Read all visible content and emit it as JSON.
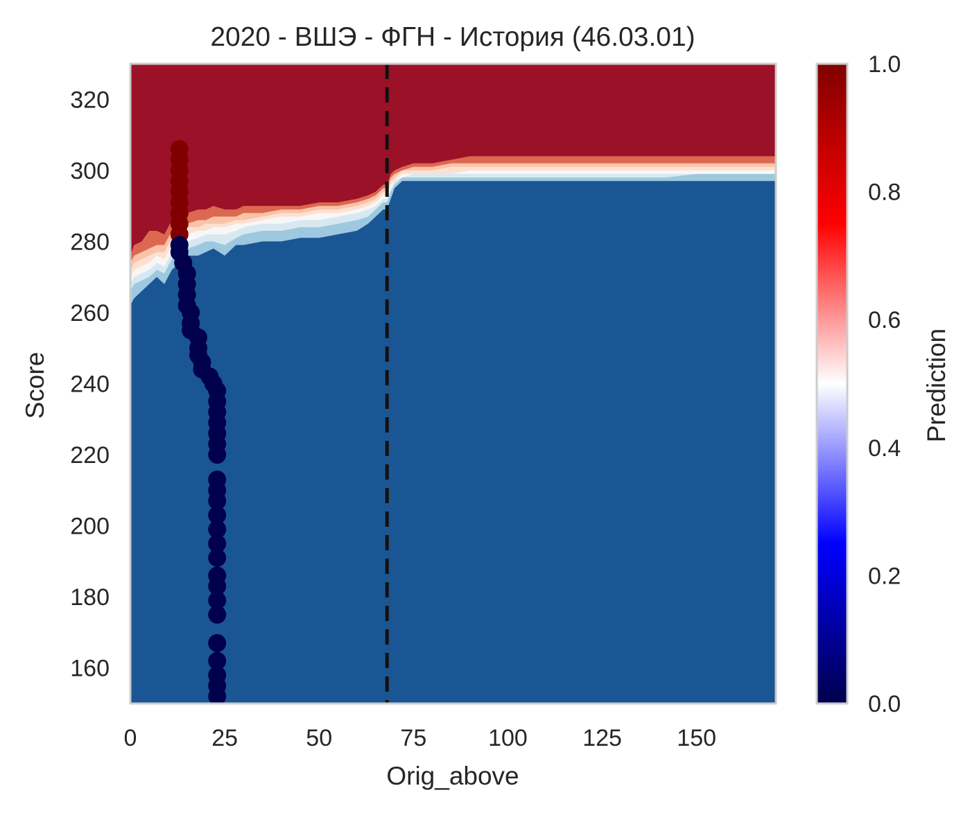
{
  "chart_data": {
    "type": "contour",
    "title": "2020 - ВШЭ - ФГН - История (46.03.01)",
    "xlabel": "Orig_above",
    "ylabel": "Score",
    "xlim": [
      0,
      171
    ],
    "ylim": [
      150,
      330
    ],
    "xticks": [
      0,
      25,
      50,
      75,
      100,
      125,
      150
    ],
    "yticks": [
      160,
      180,
      200,
      220,
      240,
      260,
      280,
      300,
      320
    ],
    "grid": false,
    "vline": {
      "x": 68,
      "style": "dashed",
      "color": "#111111"
    },
    "colorbar": {
      "label": "Prediction",
      "range": [
        0,
        1
      ],
      "ticks": [
        0.0,
        0.2,
        0.4,
        0.6,
        0.8,
        1.0
      ],
      "tick_labels": [
        "0.0",
        "0.2",
        "0.4",
        "0.6",
        "0.8",
        "1.0"
      ],
      "cmap": "seismic"
    },
    "contour_colors": [
      "#1b5694",
      "#4b94c4",
      "#9dc8e0",
      "#d8e8f1",
      "#f7f7f7",
      "#fde0d0",
      "#f9c3a9",
      "#dc6852",
      "#9b1127"
    ],
    "contour_boundaries": {
      "x": [
        0,
        1,
        3,
        5,
        7,
        9,
        11,
        13,
        15,
        18,
        20,
        22,
        25,
        28,
        30,
        35,
        40,
        45,
        50,
        55,
        60,
        63,
        65,
        67,
        68,
        69,
        70,
        72,
        75,
        80,
        85,
        90,
        95,
        100,
        101,
        110,
        120,
        130,
        140,
        142,
        150,
        160,
        171
      ],
      "levels": [
        [
          262,
          264,
          266,
          268,
          270,
          268,
          272,
          274,
          276,
          276,
          277,
          278,
          276,
          279,
          279,
          280,
          280,
          281,
          281,
          282,
          283,
          285,
          287,
          289,
          289,
          292,
          295,
          297,
          297,
          297,
          297,
          297,
          297,
          297,
          297,
          297,
          297,
          297,
          297,
          297,
          297,
          297,
          297
        ],
        [
          266,
          268,
          269,
          270,
          272,
          271,
          275,
          277,
          278,
          279,
          280,
          280,
          279,
          281,
          282,
          283,
          283,
          284,
          284,
          285,
          286,
          287,
          289,
          291,
          291,
          294,
          296,
          298,
          298,
          298,
          298,
          298,
          298,
          298,
          298,
          298,
          298,
          298,
          298,
          298,
          299,
          299,
          299
        ],
        [
          268,
          270,
          271,
          272,
          274,
          273,
          277,
          279,
          280,
          281,
          282,
          282,
          282,
          283,
          284,
          285,
          285,
          286,
          286,
          287,
          288,
          289,
          290,
          292,
          292,
          295,
          297,
          298,
          299,
          299,
          299,
          299,
          299,
          299,
          299,
          299,
          299,
          299,
          299,
          299,
          299,
          299,
          299
        ],
        [
          270,
          272,
          273,
          274,
          276,
          275,
          279,
          281,
          282,
          283,
          283,
          284,
          284,
          285,
          285,
          286,
          287,
          287,
          288,
          288,
          289,
          290,
          291,
          293,
          293,
          296,
          297,
          299,
          299,
          299,
          299,
          300,
          300,
          300,
          300,
          300,
          300,
          300,
          300,
          300,
          300,
          300,
          300
        ],
        [
          272,
          274,
          275,
          276,
          277,
          277,
          281,
          283,
          284,
          284,
          285,
          285,
          285,
          286,
          286,
          287,
          288,
          288,
          289,
          289,
          290,
          291,
          292,
          294,
          294,
          297,
          298,
          300,
          300,
          300,
          301,
          301,
          301,
          301,
          301,
          301,
          301,
          301,
          301,
          301,
          301,
          301,
          301
        ],
        [
          274,
          276,
          277,
          278,
          279,
          279,
          283,
          285,
          285,
          286,
          286,
          287,
          287,
          287,
          288,
          288,
          289,
          289,
          290,
          290,
          291,
          292,
          293,
          295,
          295,
          298,
          299,
          300,
          301,
          301,
          302,
          302,
          302,
          302,
          302,
          302,
          302,
          302,
          302,
          302,
          302,
          302,
          302
        ],
        [
          276,
          279,
          280,
          283,
          283,
          282,
          286,
          288,
          288,
          289,
          289,
          290,
          289,
          289,
          290,
          290,
          290,
          290,
          291,
          291,
          292,
          293,
          294,
          296,
          296,
          299,
          300,
          301,
          302,
          302,
          303,
          304,
          304,
          304,
          304,
          304,
          304,
          304,
          304,
          304,
          304,
          304,
          304
        ],
        [
          290,
          290,
          292,
          294,
          294,
          290,
          290,
          290,
          290,
          291,
          292,
          292,
          292,
          292,
          293,
          293,
          293,
          292,
          292,
          293,
          294,
          295,
          296,
          298,
          298,
          302,
          330,
          330,
          330,
          330,
          330,
          330,
          330,
          330,
          330,
          330,
          330,
          330,
          330,
          330,
          330,
          330,
          330
        ]
      ],
      "top_band": [
        {
          "x_from": 0,
          "x_to": 72,
          "color": "#9b1127"
        },
        {
          "x_from": 72,
          "x_to": 101,
          "color": "#dc6852"
        },
        {
          "x_from": 101,
          "x_to": 171,
          "color": "#f9c3a9"
        }
      ]
    },
    "series": [
      {
        "points": [
          {
            "x": 13,
            "y": 306,
            "v": 1
          },
          {
            "x": 13,
            "y": 303,
            "v": 1
          },
          {
            "x": 13,
            "y": 300,
            "v": 1
          },
          {
            "x": 13,
            "y": 297,
            "v": 1
          },
          {
            "x": 13,
            "y": 294,
            "v": 1
          },
          {
            "x": 13,
            "y": 291,
            "v": 1
          },
          {
            "x": 13,
            "y": 288,
            "v": 1
          },
          {
            "x": 13,
            "y": 285,
            "v": 1
          },
          {
            "x": 13,
            "y": 282,
            "v": 1
          },
          {
            "x": 13,
            "y": 279,
            "v": 0
          },
          {
            "x": 13,
            "y": 277,
            "v": 0
          },
          {
            "x": 14,
            "y": 274,
            "v": 0
          },
          {
            "x": 15,
            "y": 271,
            "v": 0
          },
          {
            "x": 15,
            "y": 268,
            "v": 0
          },
          {
            "x": 15,
            "y": 265,
            "v": 0
          },
          {
            "x": 15,
            "y": 262,
            "v": 0
          },
          {
            "x": 16,
            "y": 260,
            "v": 0
          },
          {
            "x": 16,
            "y": 257,
            "v": 0
          },
          {
            "x": 16,
            "y": 255,
            "v": 0
          },
          {
            "x": 18,
            "y": 253,
            "v": 0
          },
          {
            "x": 18,
            "y": 250,
            "v": 0
          },
          {
            "x": 18,
            "y": 248,
            "v": 0
          },
          {
            "x": 19,
            "y": 246,
            "v": 0
          },
          {
            "x": 19,
            "y": 244,
            "v": 0
          },
          {
            "x": 21,
            "y": 242,
            "v": 0
          },
          {
            "x": 22,
            "y": 240,
            "v": 0
          },
          {
            "x": 23,
            "y": 238,
            "v": 0
          },
          {
            "x": 23,
            "y": 235,
            "v": 0
          },
          {
            "x": 23,
            "y": 232,
            "v": 0
          },
          {
            "x": 23,
            "y": 229,
            "v": 0
          },
          {
            "x": 23,
            "y": 226,
            "v": 0
          },
          {
            "x": 23,
            "y": 223,
            "v": 0
          },
          {
            "x": 23,
            "y": 220,
            "v": 0
          },
          {
            "x": 23,
            "y": 213,
            "v": 0
          },
          {
            "x": 23,
            "y": 210,
            "v": 0
          },
          {
            "x": 23,
            "y": 207,
            "v": 0
          },
          {
            "x": 23,
            "y": 203,
            "v": 0
          },
          {
            "x": 23,
            "y": 199,
            "v": 0
          },
          {
            "x": 23,
            "y": 195,
            "v": 0
          },
          {
            "x": 23,
            "y": 191,
            "v": 0
          },
          {
            "x": 23,
            "y": 186,
            "v": 0
          },
          {
            "x": 23,
            "y": 183,
            "v": 0
          },
          {
            "x": 23,
            "y": 179,
            "v": 0
          },
          {
            "x": 23,
            "y": 175,
            "v": 0
          },
          {
            "x": 23,
            "y": 167,
            "v": 0
          },
          {
            "x": 23,
            "y": 162,
            "v": 0
          },
          {
            "x": 23,
            "y": 158,
            "v": 0
          },
          {
            "x": 23,
            "y": 155,
            "v": 0
          },
          {
            "x": 23,
            "y": 152,
            "v": 0
          }
        ]
      }
    ]
  }
}
